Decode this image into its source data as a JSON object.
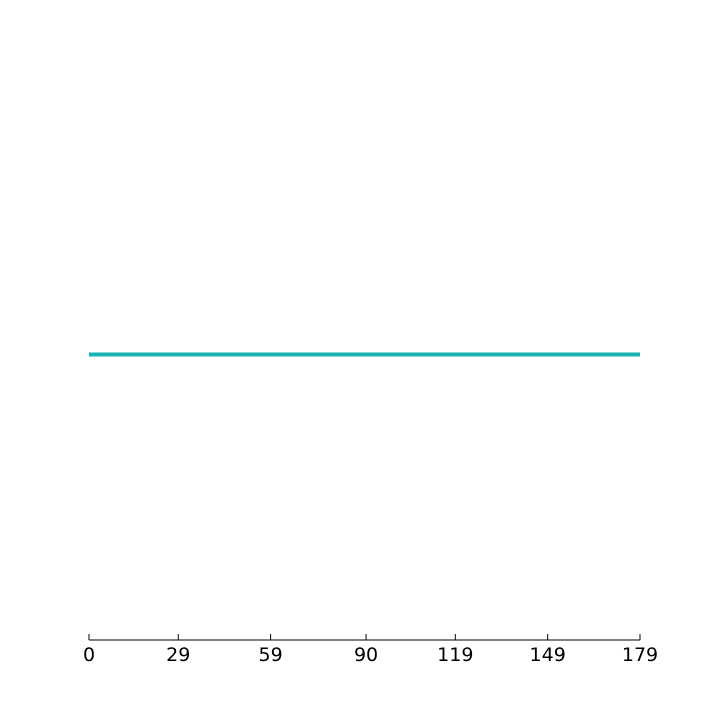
{
  "chart_data": {
    "type": "line",
    "title": "",
    "xlabel": "",
    "ylabel": "",
    "xlim": [
      0,
      179
    ],
    "ylim": [
      -1,
      1
    ],
    "grid": false,
    "x_ticks": [
      0,
      29,
      59,
      90,
      119,
      149,
      179
    ],
    "x_tick_labels": [
      "0",
      "29",
      "59",
      "90",
      "119",
      "149",
      "179"
    ],
    "series": [
      {
        "color": "#17b3b3",
        "x": [
          0,
          179
        ],
        "y": [
          0,
          0
        ]
      }
    ]
  }
}
